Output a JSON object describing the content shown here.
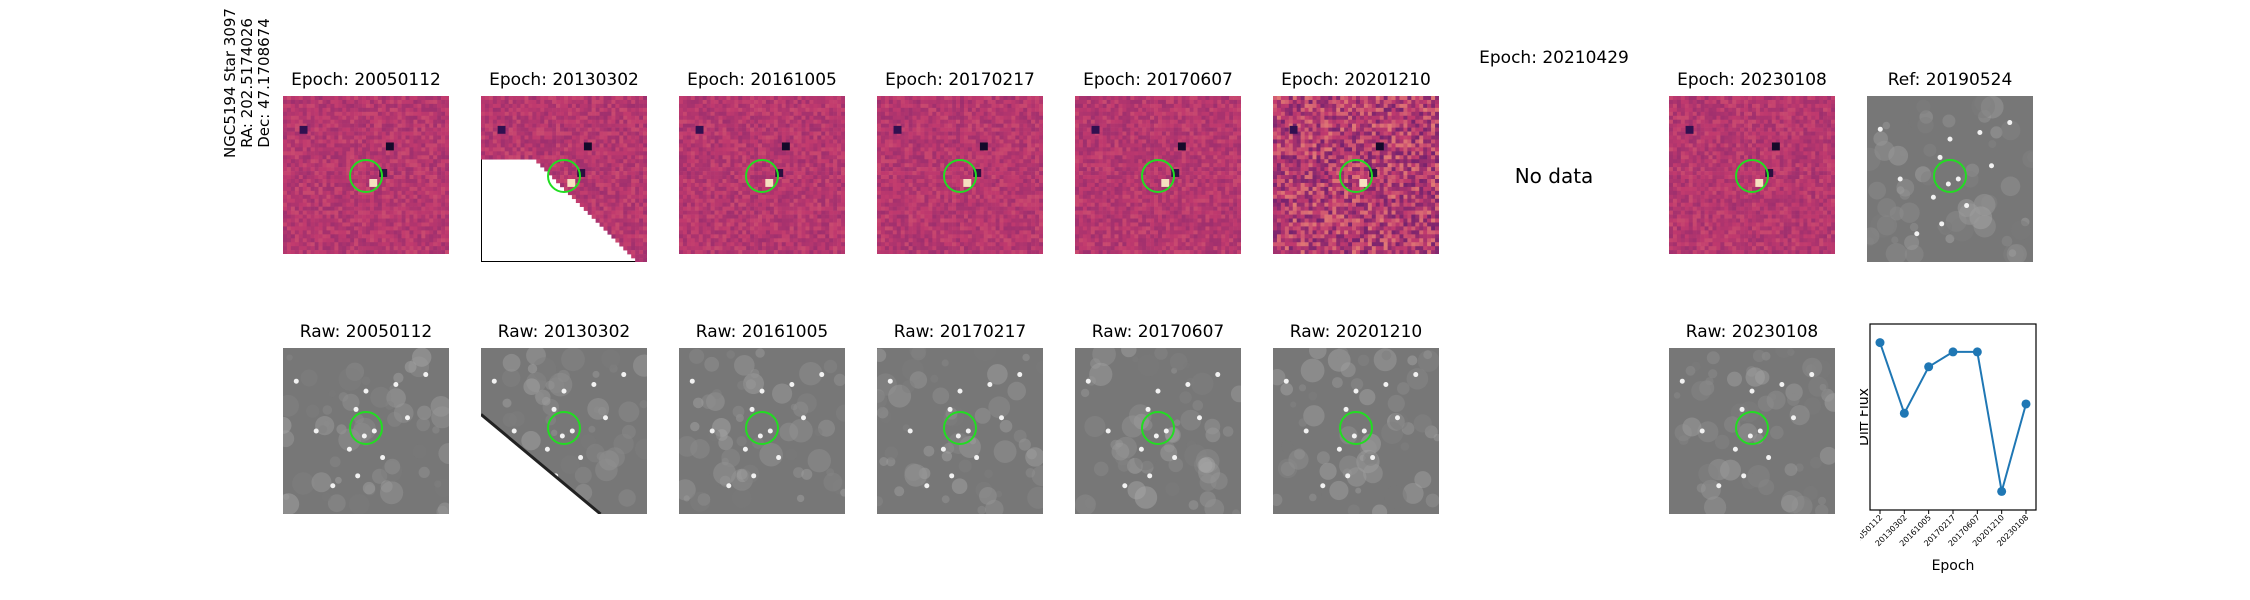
{
  "row_label": {
    "line1": "NGC5194 Star 3097",
    "line2": "RA: 202.5174026",
    "line3": "Dec: 47.1708674"
  },
  "diff_panels": [
    {
      "title": "Epoch: 20050112",
      "has_data": true
    },
    {
      "title": "Epoch: 20130302",
      "has_data": true
    },
    {
      "title": "Epoch: 20161005",
      "has_data": true
    },
    {
      "title": "Epoch: 20170217",
      "has_data": true
    },
    {
      "title": "Epoch: 20170607",
      "has_data": true
    },
    {
      "title": "Epoch: 20201210",
      "has_data": true
    },
    {
      "title": "Epoch: 20210429",
      "has_data": false,
      "nodata_text": "No data"
    },
    {
      "title": "Epoch: 20230108",
      "has_data": true
    }
  ],
  "ref_panel": {
    "title": "Ref: 20190524"
  },
  "raw_panels": [
    {
      "title": "Raw: 20050112"
    },
    {
      "title": "Raw: 20130302"
    },
    {
      "title": "Raw: 20161005"
    },
    {
      "title": "Raw: 20170217"
    },
    {
      "title": "Raw: 20170607"
    },
    {
      "title": "Raw: 20201210"
    },
    {
      "title": ""
    },
    {
      "title": "Raw: 20230108"
    }
  ],
  "chart_data": {
    "type": "line",
    "xlabel": "Epoch",
    "ylabel": "Diff Flux",
    "categories": [
      "20050112",
      "20130302",
      "20161005",
      "20170217",
      "20170607",
      "20201210",
      "20230108"
    ],
    "values": [
      0.9,
      0.52,
      0.77,
      0.85,
      0.85,
      0.1,
      0.57
    ],
    "ylim": [
      0,
      1
    ],
    "series_color": "#1f77b4",
    "marker": "circle",
    "grid": false
  },
  "colors": {
    "circle": "#22dd22",
    "magma_low": "#5a1a6e",
    "magma_mid": "#c13a6e",
    "magma_high": "#fcae7a",
    "raw_bg": "#777777"
  }
}
